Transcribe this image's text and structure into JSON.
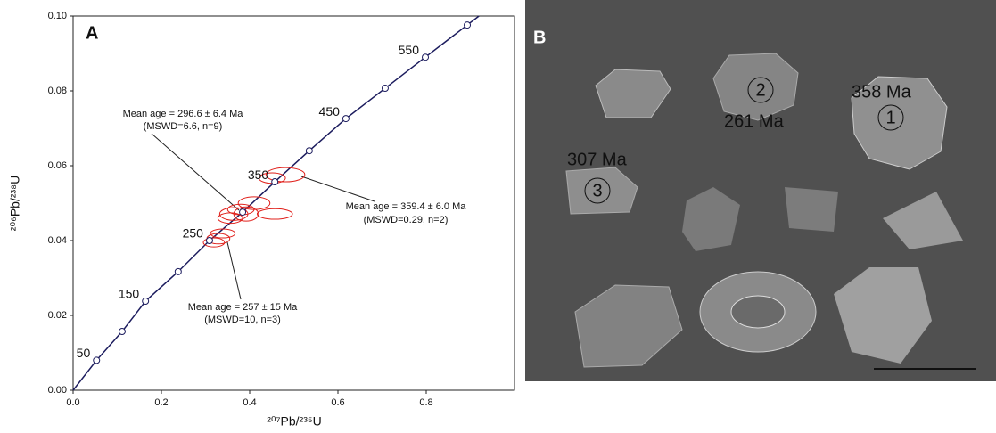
{
  "chart_data": {
    "type": "concordia",
    "panel_label": "A",
    "x_label": "²⁰⁷Pb/²³⁵U",
    "y_label": "²⁰⁶Pb/²³⁸U",
    "xlim": [
      0,
      1.0
    ],
    "ylim": [
      0,
      0.1
    ],
    "xticks": [
      {
        "value": 0,
        "label": "0.0"
      },
      0.2,
      0.4,
      0.6,
      0.8
    ],
    "yticks": [
      {
        "value": 0,
        "label": "0.00"
      },
      0.02,
      0.04,
      0.06,
      0.08,
      {
        "value": 0.1,
        "label": "0.10"
      }
    ],
    "line_color": "#1c1c5e",
    "x": [
      0.053,
      0.111,
      0.164,
      0.238,
      0.309,
      0.384,
      0.457,
      0.535,
      0.618,
      0.707,
      0.798,
      0.893
    ],
    "y": [
      0.008,
      0.0157,
      0.0238,
      0.0317,
      0.04,
      0.0476,
      0.0557,
      0.064,
      0.0726,
      0.0807,
      0.089,
      0.0976
    ],
    "point_labels": [
      50,
      null,
      150,
      null,
      250,
      null,
      350,
      null,
      450,
      null,
      550,
      null
    ],
    "ellipses": {
      "color": "#e0201b",
      "x": [
        0.481,
        0.451,
        0.41,
        0.38,
        0.364,
        0.356,
        0.392,
        0.457,
        0.339,
        0.329,
        0.319
      ],
      "y": [
        0.0576,
        0.0567,
        0.05,
        0.0483,
        0.0471,
        0.046,
        0.0471,
        0.0471,
        0.0419,
        0.0405,
        0.0395
      ],
      "dx": [
        0.044,
        0.03,
        0.036,
        0.03,
        0.032,
        0.028,
        0.028,
        0.04,
        0.028,
        0.026,
        0.024
      ],
      "dy": [
        0.0019,
        0.0014,
        0.0017,
        0.0014,
        0.0017,
        0.0014,
        0.0019,
        0.0014,
        0.0012,
        0.0014,
        0.0012
      ]
    },
    "annotations": [
      {
        "lines": [
          "Mean age = 296.6 ± 6.4 Ma",
          "(MSWD=6.6, n=9)"
        ]
      },
      {
        "lines": [
          "Mean age = 359.4  ± 6.0  Ma",
          "(MSWD=0.29, n=2)"
        ]
      },
      {
        "lines": [
          "Mean age = 257 ± 15 Ma",
          "(MSWD=10, n=3)"
        ]
      }
    ]
  },
  "image_panel": {
    "panel_label": "B",
    "grains": [
      {
        "age": "358 Ma",
        "number": "1"
      },
      {
        "age": "261 Ma",
        "number": "2"
      },
      {
        "age": "307 Ma",
        "number": "3"
      }
    ]
  }
}
